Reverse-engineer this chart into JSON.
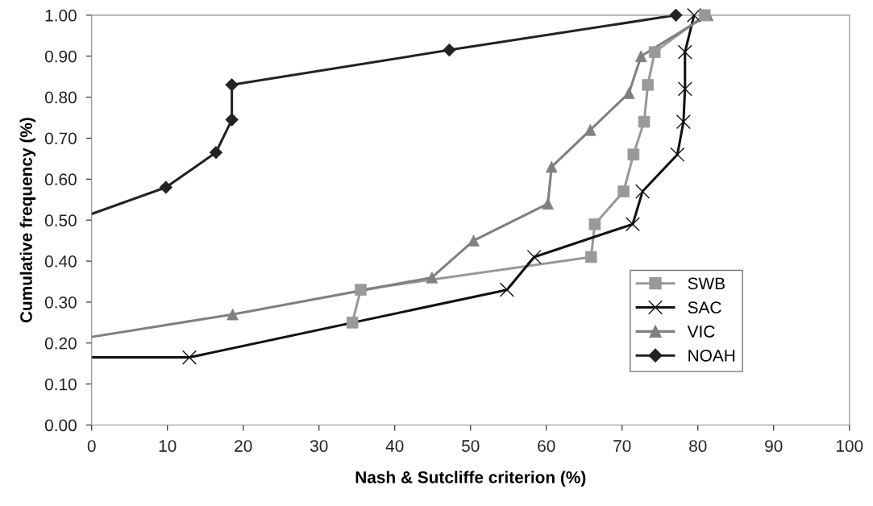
{
  "chart_data": {
    "type": "line",
    "xlabel": "Nash & Sutcliffe criterion (%)",
    "ylabel": "Cumulative frequency (%)",
    "xlim": [
      0,
      100
    ],
    "xticks": [
      0,
      10,
      20,
      30,
      40,
      50,
      60,
      70,
      80,
      90,
      100
    ],
    "ylim": [
      0,
      1
    ],
    "yticks": [
      {
        "value": 0,
        "label": "0.00"
      },
      {
        "value": 0.1,
        "label": "0.10"
      },
      {
        "value": 0.2,
        "label": "0.20"
      },
      {
        "value": 0.3,
        "label": "0.30"
      },
      {
        "value": 0.4,
        "label": "0.40"
      },
      {
        "value": 0.5,
        "label": "0.50"
      },
      {
        "value": 0.6,
        "label": "0.60"
      },
      {
        "value": 0.7,
        "label": "0.70"
      },
      {
        "value": 0.8,
        "label": "0.80"
      },
      {
        "value": 0.9,
        "label": "0.90"
      },
      {
        "value": 1,
        "label": "1.00"
      }
    ],
    "grid": false,
    "legend": "right",
    "line_style": "solid",
    "series": [
      {
        "name": "SWB",
        "color": "#999999",
        "marker": "square",
        "x": [
          34.4,
          35.5,
          65.9,
          66.4,
          70.2,
          71.5,
          72.9,
          73.4,
          74.3,
          80.9
        ],
        "values": [
          0.25,
          0.33,
          0.41,
          0.49,
          0.57,
          0.66,
          0.74,
          0.83,
          0.91,
          1.0
        ]
      },
      {
        "name": "SAC",
        "color": "#111111",
        "marker": "cross",
        "x": [
          0,
          12.9,
          54.8,
          58.4,
          71.4,
          72.7,
          77.3,
          78.1,
          78.3,
          78.3,
          79.5
        ],
        "values": [
          0.165,
          0.165,
          0.33,
          0.41,
          0.49,
          0.57,
          0.66,
          0.74,
          0.82,
          0.91,
          1.0
        ]
      },
      {
        "name": "VIC",
        "color": "#808080",
        "marker": "triangle",
        "x": [
          0,
          18.6,
          44.9,
          50.4,
          60.2,
          60.7,
          65.8,
          70.9,
          72.5,
          81.3
        ],
        "values": [
          0.215,
          0.27,
          0.36,
          0.45,
          0.54,
          0.63,
          0.72,
          0.81,
          0.9,
          1.0
        ]
      },
      {
        "name": "NOAH",
        "color": "#222222",
        "marker": "diamond",
        "x": [
          0,
          9.8,
          16.4,
          18.5,
          18.5,
          47.2,
          77.1
        ],
        "values": [
          0.515,
          0.58,
          0.665,
          0.745,
          0.83,
          0.915,
          1.0
        ]
      }
    ]
  }
}
